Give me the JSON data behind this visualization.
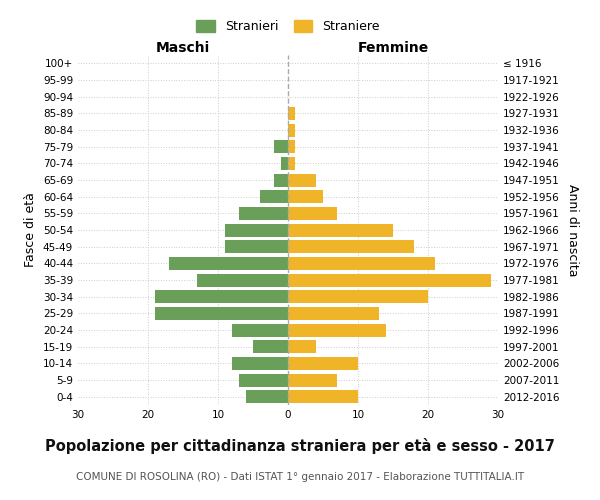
{
  "age_groups": [
    "100+",
    "95-99",
    "90-94",
    "85-89",
    "80-84",
    "75-79",
    "70-74",
    "65-69",
    "60-64",
    "55-59",
    "50-54",
    "45-49",
    "40-44",
    "35-39",
    "30-34",
    "25-29",
    "20-24",
    "15-19",
    "10-14",
    "5-9",
    "0-4"
  ],
  "birth_years": [
    "≤ 1916",
    "1917-1921",
    "1922-1926",
    "1927-1931",
    "1932-1936",
    "1937-1941",
    "1942-1946",
    "1947-1951",
    "1952-1956",
    "1957-1961",
    "1962-1966",
    "1967-1971",
    "1972-1976",
    "1977-1981",
    "1982-1986",
    "1987-1991",
    "1992-1996",
    "1997-2001",
    "2002-2006",
    "2007-2011",
    "2012-2016"
  ],
  "males": [
    0,
    0,
    0,
    0,
    0,
    2,
    1,
    2,
    4,
    7,
    9,
    9,
    17,
    13,
    19,
    19,
    8,
    5,
    8,
    7,
    6
  ],
  "females": [
    0,
    0,
    0,
    1,
    1,
    1,
    1,
    4,
    5,
    7,
    15,
    18,
    21,
    29,
    20,
    13,
    14,
    4,
    10,
    7,
    10
  ],
  "male_color": "#6a9f59",
  "female_color": "#f0b429",
  "bar_height": 0.78,
  "xlim": 30,
  "title": "Popolazione per cittadinanza straniera per età e sesso - 2017",
  "subtitle": "COMUNE DI ROSOLINA (RO) - Dati ISTAT 1° gennaio 2017 - Elaborazione TUTTITALIA.IT",
  "left_header": "Maschi",
  "right_header": "Femmine",
  "ylabel_left": "Fasce di età",
  "ylabel_right": "Anni di nascita",
  "legend_male": "Stranieri",
  "legend_female": "Straniere",
  "background_color": "#ffffff",
  "grid_color": "#cccccc",
  "title_fontsize": 10.5,
  "subtitle_fontsize": 7.5,
  "tick_fontsize": 7.5,
  "ylabel_fontsize": 9,
  "header_fontsize": 10,
  "legend_fontsize": 9
}
